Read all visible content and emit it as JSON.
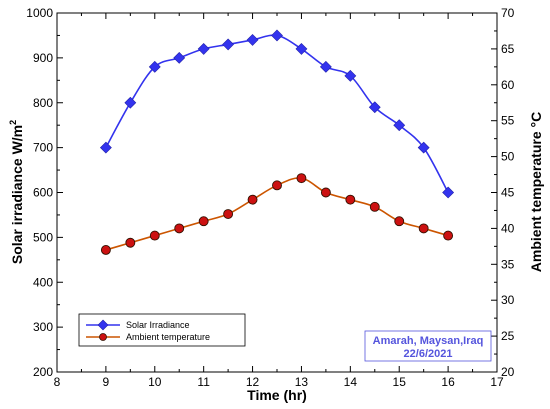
{
  "chart_data": {
    "type": "line",
    "xlabel": "Time (hr)",
    "ylabel_left": "Solar irradiance W/m",
    "ylabel_left_sup": "2",
    "ylabel_right": "Ambient temperature °C",
    "xlim": [
      8,
      17
    ],
    "ylim_left": [
      200,
      1000
    ],
    "ylim_right": [
      20,
      70
    ],
    "x_ticks": [
      "8",
      "9",
      "10",
      "11",
      "12",
      "13",
      "14",
      "15",
      "16",
      "17"
    ],
    "y_left_ticks": [
      "200",
      "300",
      "400",
      "500",
      "600",
      "700",
      "800",
      "900",
      "1000"
    ],
    "y_right_ticks": [
      "20",
      "25",
      "30",
      "35",
      "40",
      "45",
      "50",
      "55",
      "60",
      "65",
      "70"
    ],
    "legend_position": "bottom-left",
    "series": [
      {
        "name": "Solar Irradiance",
        "axis": "left",
        "color": "#3333ee",
        "marker": "diamond",
        "x": [
          9,
          9.5,
          10,
          10.5,
          11,
          11.5,
          12,
          12.5,
          13,
          13.5,
          14,
          14.5,
          15,
          15.5,
          16
        ],
        "y": [
          700,
          800,
          880,
          900,
          920,
          930,
          940,
          950,
          920,
          880,
          860,
          790,
          750,
          700,
          600
        ]
      },
      {
        "name": "Ambient temperature",
        "axis": "right",
        "color": "#cc5500",
        "marker_fill": "#cc1111",
        "marker": "circle",
        "x": [
          9,
          9.5,
          10,
          10.5,
          11,
          11.5,
          12,
          12.5,
          13,
          13.5,
          14,
          14.5,
          15,
          15.5,
          16
        ],
        "y": [
          37,
          38,
          39,
          40,
          41,
          42,
          44,
          46,
          47,
          45,
          44,
          43,
          41,
          40,
          39
        ]
      }
    ],
    "annotation": {
      "line1": "Amarah, Maysan,Iraq",
      "line2": "22/6/2021",
      "color": "#5555dd"
    }
  }
}
